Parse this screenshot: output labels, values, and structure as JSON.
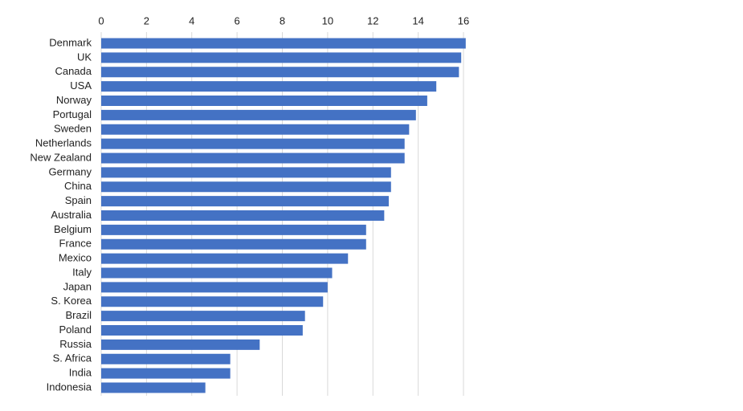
{
  "chart_data": {
    "type": "bar",
    "categories": [
      "Denmark",
      "UK",
      "Canada",
      "USA",
      "Norway",
      "Portugal",
      "Sweden",
      "Netherlands",
      "New Zealand",
      "Germany",
      "China",
      "Spain",
      "Australia",
      "Belgium",
      "France",
      "Mexico",
      "Italy",
      "Japan",
      "S. Korea",
      "Brazil",
      "Poland",
      "Russia",
      "S. Africa",
      "India",
      "Indonesia"
    ],
    "values": [
      16.1,
      15.9,
      15.8,
      14.8,
      14.4,
      13.9,
      13.6,
      13.4,
      13.4,
      12.8,
      12.8,
      12.7,
      12.5,
      11.7,
      11.7,
      10.9,
      10.2,
      10.0,
      9.8,
      9.0,
      8.9,
      7.0,
      5.7,
      5.7,
      4.6
    ],
    "color": "#4472c4",
    "xlim": [
      0,
      16
    ],
    "xticks": [
      0,
      2,
      4,
      6,
      8,
      10,
      12,
      14,
      16
    ],
    "grid": true
  }
}
